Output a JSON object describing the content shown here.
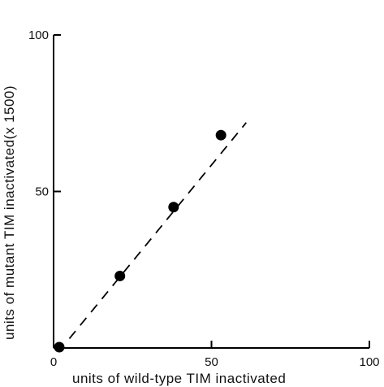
{
  "chart_data": {
    "type": "scatter",
    "title": "",
    "xlabel": "units of wild-type TIM inactivated",
    "ylabel": "units of mutant TIM inactivated(x 1500)",
    "xlim": [
      0,
      100
    ],
    "ylim": [
      0,
      100
    ],
    "x_ticks": [
      {
        "value": 0,
        "label": "0"
      },
      {
        "value": 50,
        "label": "50"
      },
      {
        "value": 100,
        "label": "100"
      }
    ],
    "y_ticks": [
      {
        "value": 50,
        "label": "50"
      },
      {
        "value": 100,
        "label": "100"
      }
    ],
    "grid": false,
    "series": [
      {
        "points": [
          {
            "x": 0,
            "y": 0
          },
          {
            "x": 21,
            "y": 23
          },
          {
            "x": 38,
            "y": 45
          },
          {
            "x": 53,
            "y": 68
          }
        ]
      }
    ],
    "fit_line": {
      "x": [
        5,
        61
      ],
      "y": [
        3,
        72
      ],
      "style": "dashed"
    },
    "colors": {
      "marker": "#000000",
      "axis": "#000000",
      "line": "#000000"
    }
  }
}
